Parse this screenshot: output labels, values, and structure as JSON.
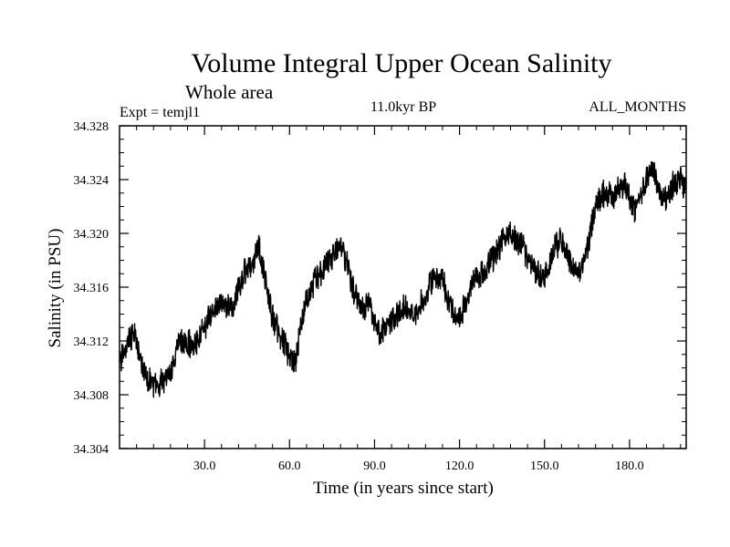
{
  "chart_data": {
    "type": "line",
    "title": "Volume Integral Upper Ocean Salinity",
    "subtitle": "Whole area",
    "left_header": "Expt = temjl1",
    "center_header": "11.0kyr BP",
    "right_header": "ALL_MONTHS",
    "xlabel": "Time (in years since start)",
    "ylabel": "Salinity (in PSU)",
    "xlim": [
      0,
      200
    ],
    "ylim": [
      34.304,
      34.328
    ],
    "x_tick_labels": [
      "30.0",
      "60.0",
      "90.0",
      "120.0",
      "150.0",
      "180.0"
    ],
    "x_tick_values": [
      30,
      60,
      90,
      120,
      150,
      180
    ],
    "x_minor_step": 6,
    "y_tick_labels": [
      "34.304",
      "34.308",
      "34.312",
      "34.316",
      "34.320",
      "34.324",
      "34.328"
    ],
    "y_tick_values": [
      34.304,
      34.308,
      34.312,
      34.316,
      34.32,
      34.324,
      34.328
    ],
    "y_minor_step": 0.001,
    "grid": false,
    "line_color": "#000000",
    "series": [
      {
        "name": "Salinity",
        "x": [
          0,
          3,
          5,
          6,
          8,
          10,
          12,
          15,
          18,
          20,
          22,
          24,
          26,
          28,
          30,
          32,
          34,
          36,
          38,
          40,
          42,
          44,
          46,
          48,
          49,
          50,
          52,
          54,
          56,
          58,
          60,
          62,
          64,
          66,
          68,
          70,
          72,
          74,
          76,
          78,
          80,
          82,
          84,
          86,
          88,
          90,
          92,
          94,
          96,
          98,
          100,
          102,
          104,
          106,
          108,
          110,
          112,
          114,
          116,
          118,
          120,
          122,
          124,
          126,
          128,
          130,
          132,
          134,
          136,
          138,
          140,
          142,
          144,
          146,
          148,
          150,
          152,
          154,
          156,
          158,
          160,
          162,
          164,
          166,
          168,
          170,
          172,
          174,
          176,
          178,
          180,
          182,
          184,
          186,
          188,
          190,
          192,
          194,
          196,
          198,
          200
        ],
        "values": [
          34.3103,
          34.3121,
          34.3126,
          34.3119,
          34.31,
          34.3091,
          34.3085,
          34.309,
          34.3096,
          34.3114,
          34.312,
          34.3118,
          34.3116,
          34.3122,
          34.313,
          34.314,
          34.3148,
          34.3152,
          34.3146,
          34.3142,
          34.316,
          34.317,
          34.3176,
          34.3184,
          34.3192,
          34.318,
          34.316,
          34.3138,
          34.3128,
          34.312,
          34.3108,
          34.3102,
          34.3132,
          34.3152,
          34.3162,
          34.3168,
          34.3175,
          34.318,
          34.3185,
          34.3188,
          34.3182,
          34.316,
          34.315,
          34.3142,
          34.3148,
          34.313,
          34.3126,
          34.313,
          34.3135,
          34.314,
          34.3145,
          34.3142,
          34.314,
          34.3148,
          34.3155,
          34.3162,
          34.3168,
          34.3165,
          34.315,
          34.314,
          34.3138,
          34.3145,
          34.316,
          34.3168,
          34.317,
          34.3175,
          34.3182,
          34.319,
          34.32,
          34.3198,
          34.3195,
          34.3192,
          34.318,
          34.3175,
          34.317,
          34.3168,
          34.318,
          34.319,
          34.3195,
          34.3185,
          34.3175,
          34.317,
          34.318,
          34.32,
          34.322,
          34.3228,
          34.323,
          34.3225,
          34.3232,
          34.3238,
          34.3225,
          34.3218,
          34.323,
          34.324,
          34.325,
          34.3235,
          34.3225,
          34.323,
          34.3238,
          34.324,
          34.3235
        ]
      }
    ]
  }
}
